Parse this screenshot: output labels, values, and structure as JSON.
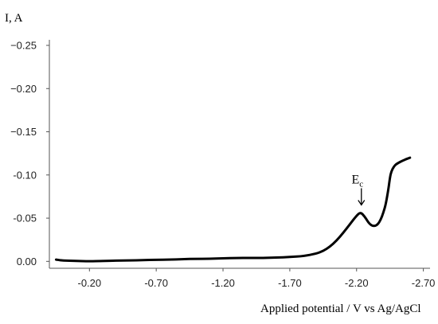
{
  "chart_data": {
    "type": "line",
    "title": "",
    "xlabel": "Applied potential / V vs Ag/AgCl",
    "ylabel": "I, A",
    "xlim": [
      0.1,
      -2.75
    ],
    "ylim": [
      0.008,
      -0.25
    ],
    "x_ticks": [
      "-0.20",
      "-0.70",
      "-1.20",
      "-1.70",
      "-2.20",
      "-2.70"
    ],
    "y_ticks": [
      "−0.25",
      "−0.20",
      "−0.15",
      "-0.10",
      "-0.05",
      "0.00"
    ],
    "x_tick_values": [
      -0.2,
      -0.7,
      -1.2,
      -1.7,
      -2.2,
      -2.7
    ],
    "y_tick_values": [
      -0.25,
      -0.2,
      -0.15,
      -0.1,
      -0.05,
      0.0
    ],
    "grid": false,
    "legend": "none",
    "line_color": "#000000",
    "annotations": [
      {
        "text": "E",
        "subscript": "c",
        "x": -2.23,
        "y": -0.057,
        "marker": "down-arrow"
      }
    ],
    "series": [
      {
        "x": [
          0.05,
          0.0,
          -0.1,
          -0.2,
          -0.3,
          -0.4,
          -0.5,
          -0.6,
          -0.7,
          -0.8,
          -0.9,
          -1.0,
          -1.1,
          -1.2,
          -1.3,
          -1.4,
          -1.5,
          -1.6,
          -1.7,
          -1.8,
          -1.9,
          -1.95,
          -2.0,
          -2.05,
          -2.1,
          -2.15,
          -2.2,
          -2.23,
          -2.26,
          -2.28,
          -2.3,
          -2.32,
          -2.34,
          -2.36,
          -2.38,
          -2.4,
          -2.42,
          -2.44,
          -2.45,
          -2.46,
          -2.48,
          -2.5,
          -2.55,
          -2.6
        ],
        "values": [
          -0.002,
          -0.001,
          -0.0005,
          0.0,
          -0.0005,
          -0.0008,
          -0.001,
          -0.0015,
          -0.0018,
          -0.002,
          -0.0025,
          -0.003,
          -0.003,
          -0.0035,
          -0.004,
          -0.004,
          -0.004,
          -0.0045,
          -0.005,
          -0.006,
          -0.009,
          -0.012,
          -0.017,
          -0.024,
          -0.033,
          -0.043,
          -0.053,
          -0.057,
          -0.052,
          -0.047,
          -0.043,
          -0.041,
          -0.041,
          -0.043,
          -0.048,
          -0.056,
          -0.067,
          -0.085,
          -0.097,
          -0.104,
          -0.11,
          -0.113,
          -0.117,
          -0.12
        ]
      }
    ]
  }
}
